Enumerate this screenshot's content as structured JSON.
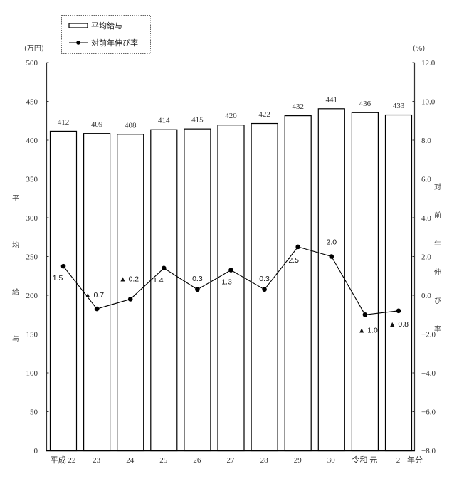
{
  "chart_data": {
    "type": "bar+line",
    "title": "",
    "categories": [
      "平成 22",
      "23",
      "24",
      "25",
      "26",
      "27",
      "28",
      "29",
      "30",
      "令和 元",
      "2"
    ],
    "x_axis_suffix": "年分",
    "series": [
      {
        "name": "平均給与",
        "type": "bar",
        "axis": "left",
        "values": [
          412,
          409,
          408,
          414,
          415,
          420,
          422,
          432,
          441,
          436,
          433
        ],
        "labels": [
          "412",
          "409",
          "408",
          "414",
          "415",
          "420",
          "422",
          "432",
          "441",
          "436",
          "433"
        ]
      },
      {
        "name": "対前年伸び率",
        "type": "line",
        "axis": "right",
        "values": [
          1.5,
          -0.7,
          -0.2,
          1.4,
          0.3,
          1.3,
          0.3,
          2.5,
          2.0,
          -1.0,
          -0.8
        ],
        "labels": [
          "1.5",
          "▲ 0.7",
          "▲ 0.2",
          "1.4",
          "0.3",
          "1.3",
          "0.3",
          "2.5",
          "2.0",
          "▲ 1.0",
          "▲ 0.8"
        ]
      }
    ],
    "left_axis": {
      "unit": "(万円)",
      "title": "平均給与",
      "ylim": [
        0,
        500
      ],
      "ticks": [
        "0",
        "50",
        "100",
        "150",
        "200",
        "250",
        "300",
        "350",
        "400",
        "450",
        "500"
      ]
    },
    "right_axis": {
      "unit": "(%)",
      "title": "対前年伸び率",
      "ylim": [
        -8.0,
        12.0
      ],
      "ticks": [
        "-8.0",
        "-6.0",
        "-4.0",
        "-2.0",
        "0.0",
        "2.0",
        "4.0",
        "6.0",
        "8.0",
        "10.0",
        "12.0"
      ]
    },
    "legend": {
      "position": "top-left",
      "entries": [
        "平均給与",
        "対前年伸び率"
      ]
    },
    "grid": false
  }
}
